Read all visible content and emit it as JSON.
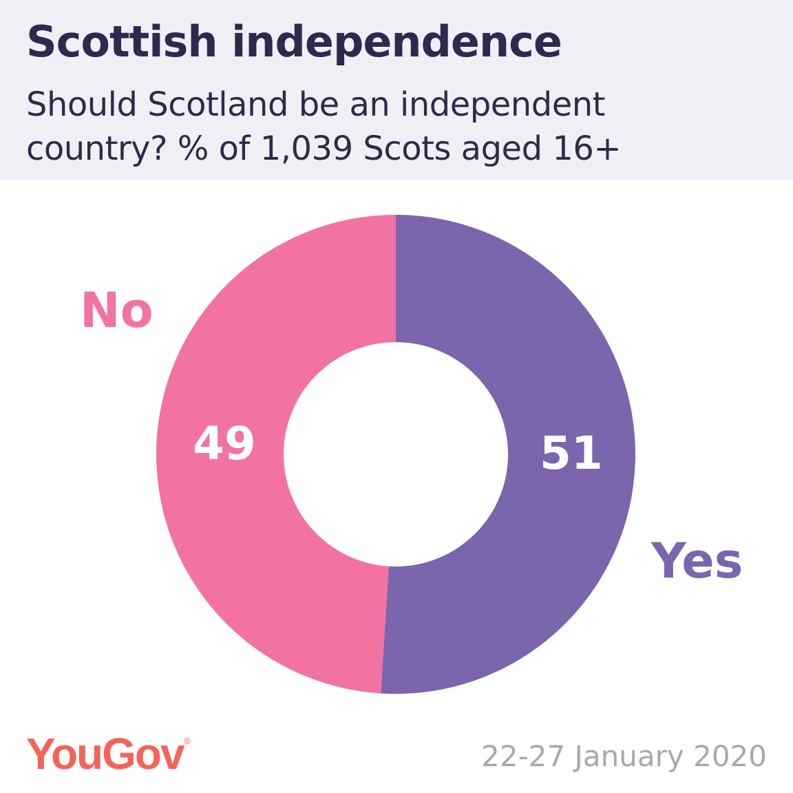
{
  "header": {
    "title": "Scottish independence",
    "subtitle": "Should Scotland be an independent country? % of 1,039 Scots aged 16+"
  },
  "chart_data": {
    "type": "pie",
    "variant": "donut",
    "title": "Scottish independence",
    "subtitle": "Should Scotland be an independent country? % of 1,039 Scots aged 16+",
    "slices": [
      {
        "label": "Yes",
        "value": 51,
        "value_label": "51",
        "color": "#7b65ad"
      },
      {
        "label": "No",
        "value": 49,
        "value_label": "49",
        "color": "#f273a3"
      }
    ],
    "start_angle": "top",
    "direction": "clockwise"
  },
  "footer": {
    "brand": "YouGov",
    "brand_mark": "®",
    "brand_color": "#f4645a",
    "date": "22-27 January 2020"
  }
}
